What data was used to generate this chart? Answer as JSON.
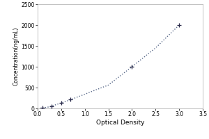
{
  "x_data": [
    0.05,
    0.1,
    0.15,
    0.2,
    0.25,
    0.3,
    0.35,
    0.4,
    0.5,
    0.6,
    0.7,
    0.8,
    1.0,
    1.2,
    1.5,
    2.0,
    2.5,
    3.0
  ],
  "y_data": [
    5,
    10,
    18,
    28,
    40,
    55,
    75,
    95,
    130,
    170,
    210,
    255,
    340,
    430,
    560,
    1000,
    1450,
    2000
  ],
  "marker_x": [
    0.1,
    0.3,
    0.5,
    0.7,
    2.0,
    3.0
  ],
  "marker_y": [
    10,
    55,
    130,
    210,
    1000,
    2000
  ],
  "xlabel": "Optical Density",
  "ylabel": "Concentration(ng/mL)",
  "xlim": [
    0,
    3.5
  ],
  "ylim": [
    0,
    2500
  ],
  "xticks": [
    0,
    0.5,
    1,
    1.5,
    2,
    2.5,
    3,
    3.5
  ],
  "yticks": [
    0,
    500,
    1000,
    1500,
    2000,
    2500
  ],
  "line_color": "#5a6a8a",
  "marker_color": "#2a2a4a",
  "bg_color": "#ffffff",
  "xlabel_fontsize": 6.5,
  "ylabel_fontsize": 5.5,
  "tick_fontsize": 5.5
}
